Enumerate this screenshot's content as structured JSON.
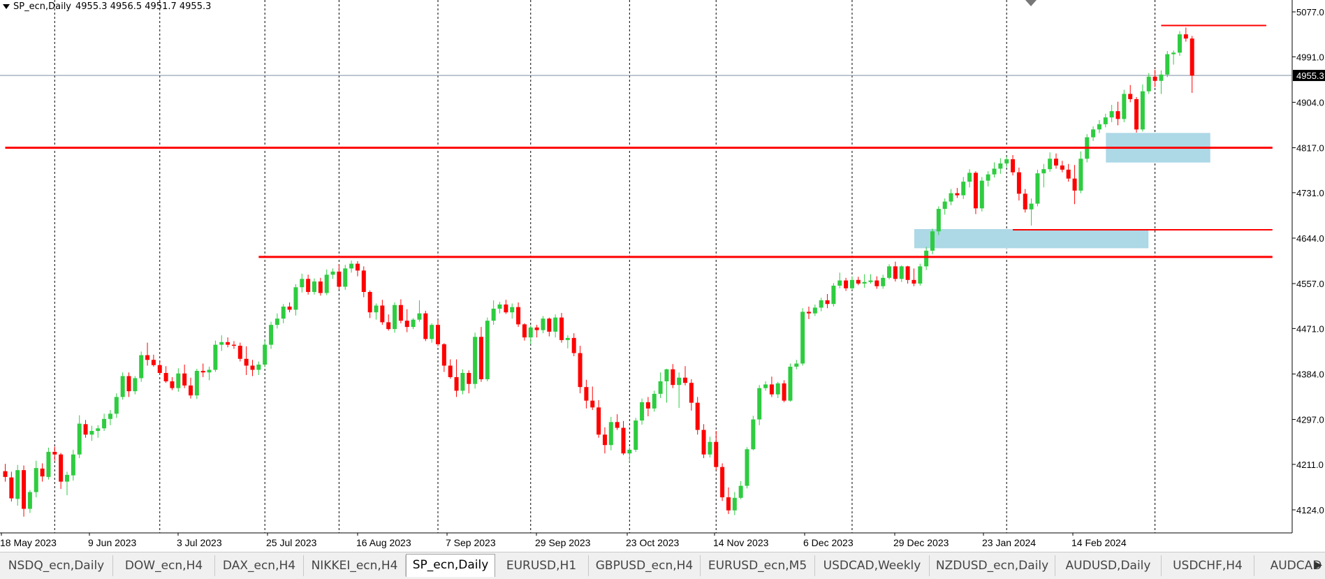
{
  "header": {
    "symbol": "SP_ecn,Daily",
    "ohlc": "4955.3 4956.5 4951.7 4955.3"
  },
  "colors": {
    "up": "#2ecc40",
    "down": "#ff0000",
    "level": "#ff0000",
    "zone": "#add8e6",
    "grid": "#000000",
    "price_line": "#7b8da0",
    "price_tag_bg": "#000000"
  },
  "chart_data": {
    "type": "candlestick",
    "title": "",
    "y_ticks": [
      "5077.0",
      "4991.0",
      "4904.0",
      "4817.0",
      "4731.0",
      "4644.0",
      "4557.0",
      "4471.0",
      "4384.0",
      "4297.0",
      "4211.0",
      "4124.0"
    ],
    "ylim": [
      4110,
      5101
    ],
    "x_ticks": [
      "18 May 2023",
      "9 Jun 2023",
      "3 Jul 2023",
      "25 Jul 2023",
      "16 Aug 2023",
      "7 Sep 2023",
      "29 Sep 2023",
      "23 Oct 2023",
      "14 Nov 2023",
      "6 Dec 2023",
      "29 Dec 2023",
      "23 Jan 2024",
      "14 Feb 2024"
    ],
    "current_price": "4955.3",
    "current_price_value": 4955.3,
    "candles": [
      [
        4198,
        4212,
        4178,
        4187
      ],
      [
        4186,
        4197,
        4140,
        4146
      ],
      [
        4145,
        4210,
        4132,
        4200
      ],
      [
        4200,
        4209,
        4111,
        4126
      ],
      [
        4126,
        4162,
        4118,
        4158
      ],
      [
        4158,
        4218,
        4148,
        4204
      ],
      [
        4203,
        4213,
        4178,
        4188
      ],
      [
        4187,
        4243,
        4182,
        4235
      ],
      [
        4235,
        4245,
        4218,
        4230
      ],
      [
        4230,
        4233,
        4164,
        4178
      ],
      [
        4178,
        4197,
        4152,
        4191
      ],
      [
        4190,
        4239,
        4180,
        4230
      ],
      [
        4230,
        4305,
        4223,
        4289
      ],
      [
        4288,
        4296,
        4262,
        4268
      ],
      [
        4268,
        4285,
        4256,
        4275
      ],
      [
        4275,
        4286,
        4262,
        4280
      ],
      [
        4280,
        4308,
        4275,
        4298
      ],
      [
        4298,
        4315,
        4286,
        4308
      ],
      [
        4308,
        4347,
        4300,
        4340
      ],
      [
        4340,
        4387,
        4335,
        4380
      ],
      [
        4380,
        4387,
        4340,
        4351
      ],
      [
        4351,
        4380,
        4345,
        4376
      ],
      [
        4376,
        4427,
        4369,
        4420
      ],
      [
        4420,
        4444,
        4400,
        4411
      ],
      [
        4411,
        4421,
        4398,
        4401
      ],
      [
        4401,
        4410,
        4383,
        4386
      ],
      [
        4386,
        4399,
        4367,
        4370
      ],
      [
        4370,
        4378,
        4353,
        4357
      ],
      [
        4357,
        4395,
        4350,
        4385
      ],
      [
        4385,
        4402,
        4357,
        4362
      ],
      [
        4362,
        4377,
        4337,
        4343
      ],
      [
        4343,
        4394,
        4336,
        4390
      ],
      [
        4390,
        4404,
        4378,
        4387
      ],
      [
        4387,
        4398,
        4372,
        4392
      ],
      [
        4392,
        4448,
        4388,
        4440
      ],
      [
        4440,
        4458,
        4428,
        4445
      ],
      [
        4445,
        4454,
        4435,
        4440
      ],
      [
        4440,
        4447,
        4432,
        4438
      ],
      [
        4438,
        4444,
        4408,
        4413
      ],
      [
        4413,
        4437,
        4382,
        4400
      ],
      [
        4400,
        4411,
        4380,
        4392
      ],
      [
        4392,
        4408,
        4382,
        4402
      ],
      [
        4402,
        4449,
        4397,
        4440
      ],
      [
        4440,
        4484,
        4432,
        4478
      ],
      [
        4478,
        4500,
        4471,
        4490
      ],
      [
        4490,
        4518,
        4481,
        4513
      ],
      [
        4513,
        4521,
        4502,
        4507
      ],
      [
        4507,
        4556,
        4496,
        4550
      ],
      [
        4550,
        4576,
        4540,
        4566
      ],
      [
        4566,
        4574,
        4536,
        4541
      ],
      [
        4541,
        4567,
        4536,
        4561
      ],
      [
        4561,
        4568,
        4534,
        4539
      ],
      [
        4539,
        4584,
        4535,
        4574
      ],
      [
        4574,
        4586,
        4566,
        4580
      ],
      [
        4580,
        4594,
        4546,
        4551
      ],
      [
        4551,
        4593,
        4545,
        4586
      ],
      [
        4586,
        4601,
        4578,
        4595
      ],
      [
        4595,
        4600,
        4571,
        4582
      ],
      [
        4582,
        4590,
        4531,
        4541
      ],
      [
        4541,
        4544,
        4491,
        4502
      ],
      [
        4502,
        4519,
        4488,
        4515
      ],
      [
        4515,
        4526,
        4478,
        4483
      ],
      [
        4483,
        4498,
        4467,
        4470
      ],
      [
        4470,
        4521,
        4463,
        4516
      ],
      [
        4516,
        4527,
        4481,
        4486
      ],
      [
        4486,
        4508,
        4464,
        4474
      ],
      [
        4474,
        4491,
        4470,
        4488
      ],
      [
        4488,
        4525,
        4484,
        4500
      ],
      [
        4500,
        4505,
        4447,
        4451
      ],
      [
        4451,
        4481,
        4444,
        4478
      ],
      [
        4478,
        4488,
        4437,
        4441
      ],
      [
        4441,
        4443,
        4388,
        4400
      ],
      [
        4400,
        4412,
        4375,
        4378
      ],
      [
        4378,
        4412,
        4340,
        4352
      ],
      [
        4352,
        4393,
        4345,
        4386
      ],
      [
        4386,
        4391,
        4347,
        4365
      ],
      [
        4365,
        4463,
        4356,
        4455
      ],
      [
        4455,
        4474,
        4369,
        4374
      ],
      [
        4374,
        4492,
        4370,
        4486
      ],
      [
        4486,
        4525,
        4478,
        4509
      ],
      [
        4509,
        4522,
        4500,
        4517
      ],
      [
        4517,
        4526,
        4499,
        4502
      ],
      [
        4502,
        4519,
        4490,
        4512
      ],
      [
        4512,
        4521,
        4474,
        4479
      ],
      [
        4479,
        4481,
        4448,
        4454
      ],
      [
        4454,
        4477,
        4441,
        4473
      ],
      [
        4473,
        4478,
        4454,
        4468
      ],
      [
        4468,
        4495,
        4462,
        4490
      ],
      [
        4490,
        4492,
        4456,
        4465
      ],
      [
        4465,
        4498,
        4454,
        4492
      ],
      [
        4492,
        4501,
        4444,
        4449
      ],
      [
        4449,
        4458,
        4433,
        4453
      ],
      [
        4453,
        4462,
        4418,
        4424
      ],
      [
        4424,
        4438,
        4347,
        4359
      ],
      [
        4359,
        4373,
        4318,
        4333
      ],
      [
        4333,
        4360,
        4315,
        4320
      ],
      [
        4320,
        4334,
        4262,
        4268
      ],
      [
        4268,
        4282,
        4232,
        4248
      ],
      [
        4248,
        4302,
        4238,
        4292
      ],
      [
        4292,
        4307,
        4277,
        4281
      ],
      [
        4281,
        4294,
        4229,
        4232
      ],
      [
        4232,
        4244,
        4214,
        4239
      ],
      [
        4239,
        4300,
        4235,
        4295
      ],
      [
        4295,
        4337,
        4287,
        4330
      ],
      [
        4330,
        4340,
        4303,
        4318
      ],
      [
        4318,
        4352,
        4312,
        4346
      ],
      [
        4346,
        4387,
        4338,
        4370
      ],
      [
        4370,
        4394,
        4329,
        4393
      ],
      [
        4393,
        4403,
        4357,
        4363
      ],
      [
        4363,
        4387,
        4319,
        4377
      ],
      [
        4377,
        4399,
        4362,
        4367
      ],
      [
        4367,
        4374,
        4314,
        4329
      ],
      [
        4329,
        4340,
        4268,
        4277
      ],
      [
        4277,
        4288,
        4223,
        4230
      ],
      [
        4230,
        4264,
        4224,
        4254
      ],
      [
        4254,
        4275,
        4200,
        4206
      ],
      [
        4206,
        4213,
        4141,
        4148
      ],
      [
        4148,
        4167,
        4116,
        4123
      ],
      [
        4123,
        4158,
        4114,
        4147
      ],
      [
        4147,
        4179,
        4144,
        4170
      ],
      [
        4170,
        4244,
        4165,
        4240
      ],
      [
        4240,
        4304,
        4238,
        4297
      ],
      [
        4297,
        4363,
        4286,
        4357
      ],
      [
        4357,
        4370,
        4352,
        4364
      ],
      [
        4364,
        4379,
        4340,
        4345
      ],
      [
        4345,
        4369,
        4338,
        4366
      ],
      [
        4366,
        4372,
        4330,
        4333
      ],
      [
        4333,
        4404,
        4331,
        4398
      ],
      [
        4398,
        4411,
        4393,
        4404
      ],
      [
        4404,
        4510,
        4400,
        4503
      ],
      [
        4503,
        4513,
        4489,
        4500
      ],
      [
        4500,
        4517,
        4495,
        4511
      ],
      [
        4511,
        4530,
        4504,
        4525
      ],
      [
        4525,
        4537,
        4510,
        4518
      ],
      [
        4518,
        4558,
        4513,
        4553
      ],
      [
        4553,
        4578,
        4548,
        4563
      ],
      [
        4563,
        4568,
        4543,
        4548
      ],
      [
        4548,
        4571,
        4545,
        4564
      ],
      [
        4564,
        4570,
        4554,
        4557
      ],
      [
        4557,
        4575,
        4549,
        4560
      ],
      [
        4560,
        4575,
        4557,
        4563
      ],
      [
        4563,
        4571,
        4547,
        4552
      ],
      [
        4552,
        4574,
        4547,
        4568
      ],
      [
        4568,
        4594,
        4565,
        4590
      ],
      [
        4590,
        4599,
        4561,
        4566
      ],
      [
        4566,
        4592,
        4560,
        4590
      ],
      [
        4590,
        4591,
        4557,
        4564
      ],
      [
        4564,
        4586,
        4552,
        4557
      ],
      [
        4557,
        4595,
        4553,
        4590
      ],
      [
        4590,
        4627,
        4583,
        4620
      ],
      [
        4620,
        4662,
        4613,
        4657
      ],
      [
        4657,
        4705,
        4650,
        4700
      ],
      [
        4700,
        4720,
        4689,
        4714
      ],
      [
        4714,
        4738,
        4707,
        4730
      ],
      [
        4730,
        4740,
        4721,
        4726
      ],
      [
        4726,
        4761,
        4719,
        4752
      ],
      [
        4752,
        4776,
        4741,
        4769
      ],
      [
        4769,
        4772,
        4690,
        4701
      ],
      [
        4701,
        4761,
        4695,
        4754
      ],
      [
        4754,
        4772,
        4743,
        4766
      ],
      [
        4766,
        4789,
        4760,
        4777
      ],
      [
        4777,
        4797,
        4767,
        4787
      ],
      [
        4787,
        4800,
        4780,
        4795
      ],
      [
        4795,
        4803,
        4764,
        4770
      ],
      [
        4770,
        4779,
        4716,
        4729
      ],
      [
        4729,
        4738,
        4693,
        4699
      ],
      [
        4699,
        4720,
        4668,
        4710
      ],
      [
        4710,
        4775,
        4705,
        4768
      ],
      [
        4768,
        4786,
        4741,
        4776
      ],
      [
        4776,
        4808,
        4771,
        4796
      ],
      [
        4796,
        4806,
        4777,
        4783
      ],
      [
        4783,
        4792,
        4770,
        4775
      ],
      [
        4775,
        4786,
        4752,
        4758
      ],
      [
        4758,
        4784,
        4709,
        4735
      ],
      [
        4735,
        4810,
        4730,
        4796
      ],
      [
        4796,
        4843,
        4789,
        4837
      ],
      [
        4837,
        4858,
        4830,
        4852
      ],
      [
        4852,
        4870,
        4845,
        4862
      ],
      [
        4862,
        4882,
        4856,
        4875
      ],
      [
        4875,
        4899,
        4866,
        4887
      ],
      [
        4887,
        4905,
        4860,
        4872
      ],
      [
        4872,
        4928,
        4866,
        4920
      ],
      [
        4920,
        4937,
        4904,
        4910
      ],
      [
        4910,
        4914,
        4846,
        4852
      ],
      [
        4852,
        4938,
        4848,
        4925
      ],
      [
        4925,
        4960,
        4920,
        4953
      ],
      [
        4953,
        4966,
        4933,
        4945
      ],
      [
        4945,
        4965,
        4920,
        4957
      ],
      [
        4957,
        5002,
        4952,
        4996
      ],
      [
        4996,
        5003,
        4976,
        4999
      ],
      [
        4999,
        5040,
        4993,
        5034
      ],
      [
        5034,
        5047,
        5020,
        5026
      ],
      [
        5026,
        5031,
        4922,
        4955
      ]
    ],
    "levels": [
      {
        "value": 4817,
        "from_index": 0,
        "to_index": 205
      },
      {
        "value": 4608,
        "from_index": 41,
        "to_index": 205
      },
      {
        "value": 4660,
        "from_index": 163,
        "to_index": 205
      },
      {
        "value": 5051,
        "from_index": 187,
        "to_index": 204
      }
    ],
    "zones": [
      {
        "from_index": 147,
        "to_index": 185,
        "low": 4624,
        "high": 4662
      },
      {
        "from_index": 178,
        "to_index": 195,
        "low": 4788,
        "high": 4846
      }
    ],
    "gridlines_at_index": [
      8,
      25,
      42,
      54,
      70,
      85,
      101,
      115,
      137,
      162,
      186
    ]
  },
  "tabs": [
    {
      "label": "NSDQ_ecn,Daily"
    },
    {
      "label": "DOW_ecn,H4"
    },
    {
      "label": "DAX_ecn,H4"
    },
    {
      "label": "NIKKEI_ecn,H4"
    },
    {
      "label": "SP_ecn,Daily",
      "active": true
    },
    {
      "label": "EURUSD,H1"
    },
    {
      "label": "GBPUSD_ecn,H4"
    },
    {
      "label": "EURUSD_ecn,M5"
    },
    {
      "label": "USDCAD,Weekly"
    },
    {
      "label": "NZDUSD_ecn,Daily"
    },
    {
      "label": "AUDUSD,Daily"
    },
    {
      "label": "USDCHF,H4"
    },
    {
      "label": "AUDCAD"
    }
  ]
}
